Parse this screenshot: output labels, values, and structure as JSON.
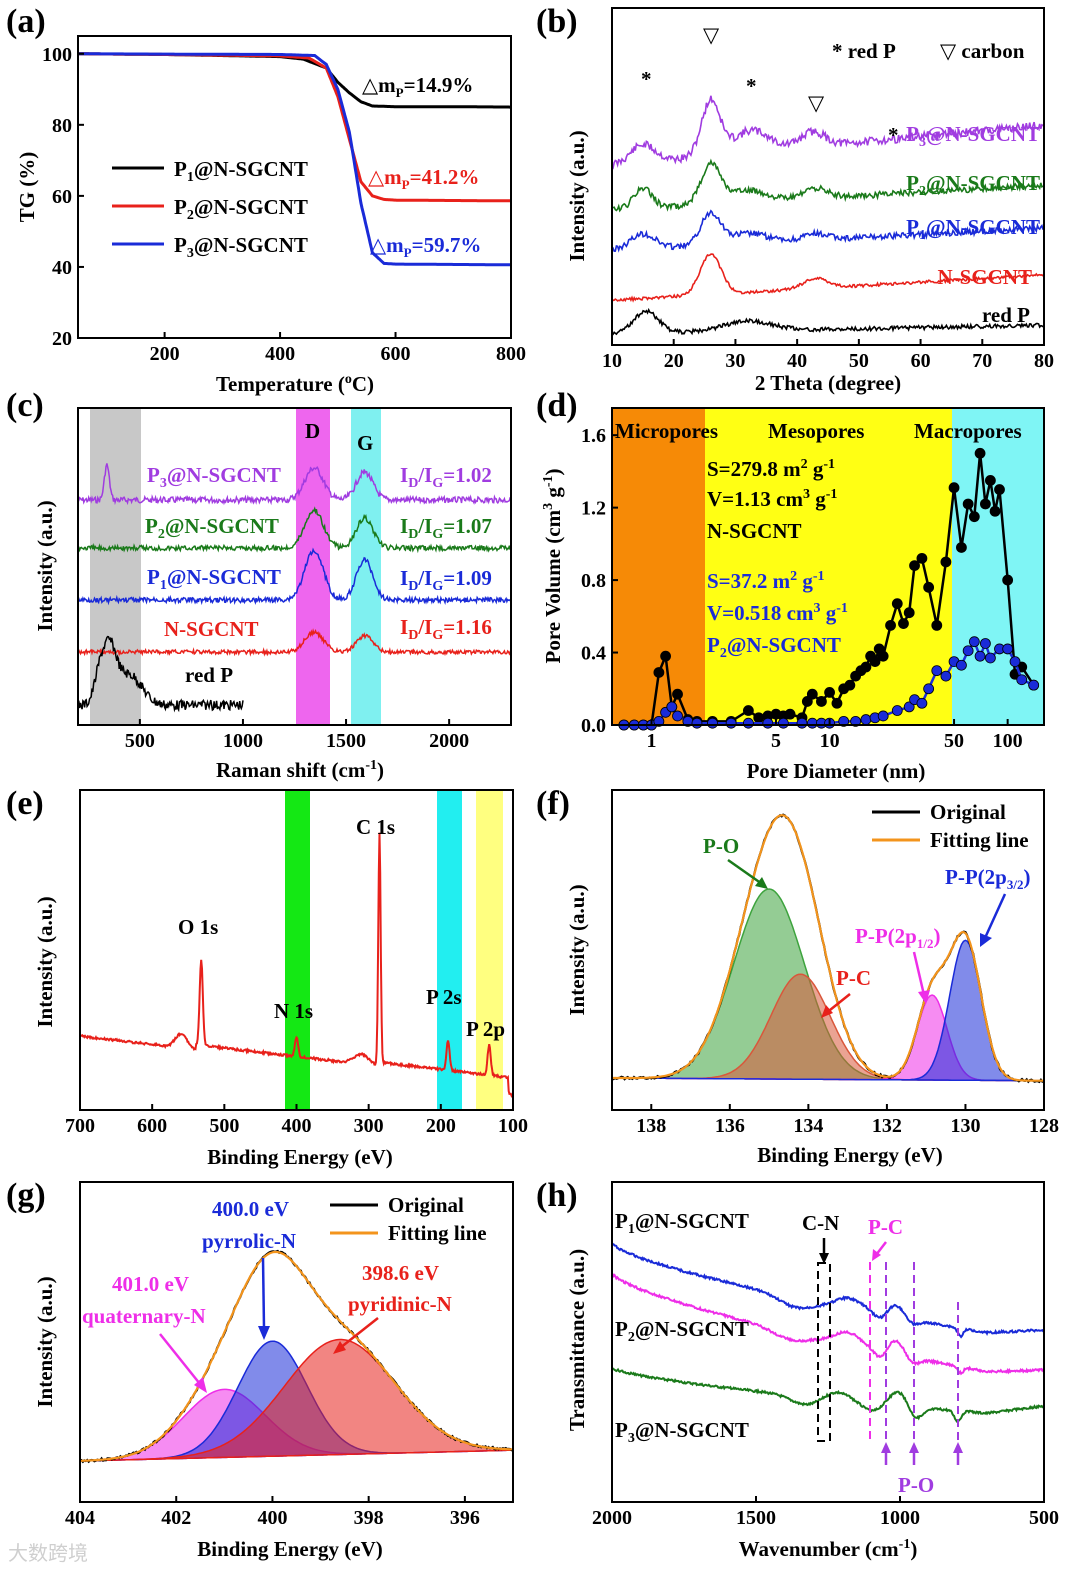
{
  "figure_colors": {
    "black": "#000000",
    "red": "#e8211b",
    "blue": "#1a2bd8",
    "purple": "#a03ce0",
    "green": "#1a7a1a",
    "magenta": "#ee2ee8",
    "orange": "#f3941c"
  },
  "watermark": "大数跨境",
  "chart_data": [
    {
      "panel": "(a)",
      "type": "line",
      "xlabel": "Temperature (°C)",
      "ylabel": "TG (%)",
      "xlim": [
        50,
        800
      ],
      "ylim": [
        20,
        105
      ],
      "xticks": [
        200,
        400,
        600,
        800
      ],
      "yticks": [
        20,
        40,
        60,
        80,
        100
      ],
      "series": [
        {
          "name": "P₁@N-SGCNT",
          "color": "#000000",
          "x": [
            50,
            200,
            400,
            440,
            480,
            500,
            520,
            540,
            560,
            600,
            700,
            800
          ],
          "y": [
            100,
            99.8,
            99.2,
            98.5,
            96,
            92,
            89,
            86.5,
            85.3,
            85.1,
            85.1,
            85.0
          ]
        },
        {
          "name": "P₂@N-SGCNT",
          "color": "#e8211b",
          "x": [
            50,
            200,
            400,
            450,
            480,
            500,
            520,
            540,
            560,
            580,
            600,
            700,
            800
          ],
          "y": [
            100,
            99.8,
            99.4,
            98.8,
            96,
            88,
            76,
            64,
            60,
            59,
            58.8,
            58.7,
            58.6
          ]
        },
        {
          "name": "P₃@N-SGCNT",
          "color": "#1a2bd8",
          "x": [
            50,
            200,
            400,
            460,
            480,
            500,
            520,
            540,
            560,
            580,
            600,
            700,
            800
          ],
          "y": [
            100,
            99.9,
            99.8,
            99.5,
            97,
            90,
            78,
            58,
            44,
            41,
            40.8,
            40.7,
            40.6
          ]
        }
      ],
      "annotations": [
        "△mₚ=14.9%",
        "△mₚ=41.2%",
        "△mₚ=59.7%"
      ]
    },
    {
      "panel": "(b)",
      "type": "line",
      "xlabel": "2 Theta (degree)",
      "ylabel": "Intensity (a.u.)",
      "xlim": [
        10,
        80
      ],
      "xticks": [
        10,
        20,
        30,
        40,
        50,
        60,
        70,
        80
      ],
      "legend": [
        "* red P",
        "▽ carbon"
      ],
      "series": [
        {
          "name": "P₃@N-SGCNT",
          "color": "#a03ce0"
        },
        {
          "name": "P₂@N-SGCNT",
          "color": "#1a7a1a"
        },
        {
          "name": "P₁@N-SGCNT",
          "color": "#1a2bd8"
        },
        {
          "name": "N-SGCNT",
          "color": "#e8211b"
        },
        {
          "name": "red P",
          "color": "#000000"
        }
      ],
      "peak_marks": [
        "*",
        "▽",
        "*",
        "▽",
        "*"
      ]
    },
    {
      "panel": "(c)",
      "type": "line",
      "xlabel": "Raman shift (cm⁻¹)",
      "ylabel": "Intensity (a.u.)",
      "xlim": [
        200,
        2300
      ],
      "xticks": [
        500,
        1000,
        1500,
        2000
      ],
      "bands": [
        "D",
        "G"
      ],
      "series": [
        {
          "name": "P₃@N-SGCNT",
          "color": "#a03ce0",
          "ratio": "Iᴅ/Iᴳ=1.02"
        },
        {
          "name": "P₂@N-SGCNT",
          "color": "#1a7a1a",
          "ratio": "Iᴅ/Iᴳ=1.07"
        },
        {
          "name": "P₁@N-SGCNT",
          "color": "#1a2bd8",
          "ratio": "Iᴅ/Iᴳ=1.09"
        },
        {
          "name": "N-SGCNT",
          "color": "#e8211b",
          "ratio": "Iᴅ/Iᴳ=1.16"
        },
        {
          "name": "red P",
          "color": "#000000",
          "ratio": ""
        }
      ]
    },
    {
      "panel": "(d)",
      "type": "scatter",
      "xlabel": "Pore Diameter (nm)",
      "ylabel": "Pore Volume (cm³ g⁻¹)",
      "xscale": "log",
      "xlim": [
        0.6,
        160
      ],
      "ylim": [
        0,
        1.75
      ],
      "xticks": [
        1,
        5,
        10,
        50,
        100
      ],
      "yticks": [
        0.0,
        0.4,
        0.8,
        1.2,
        1.6
      ],
      "regions": [
        "Micropores",
        "Mesopores",
        "Macropores"
      ],
      "texts": [
        "S=279.8 m² g⁻¹",
        "V=1.13 cm³ g⁻¹",
        "N-SGCNT",
        "S=37.2 m² g⁻¹",
        "V=0.518 cm³ g⁻¹",
        "P₂@N-SGCNT"
      ],
      "series": [
        {
          "name": "N-SGCNT",
          "color": "#000000",
          "x": [
            0.7,
            0.8,
            0.9,
            1.0,
            1.1,
            1.2,
            1.3,
            1.4,
            1.6,
            1.8,
            2.2,
            2.8,
            3.5,
            4.0,
            4.5,
            5.0,
            5.5,
            6.0,
            7.0,
            7.5,
            8,
            9,
            10,
            11,
            12,
            13,
            14,
            15,
            16,
            17,
            18,
            19,
            20,
            22,
            24,
            26,
            28,
            30,
            33,
            36,
            40,
            45,
            50,
            55,
            60,
            65,
            70,
            75,
            80,
            85,
            90,
            100,
            110,
            120,
            140
          ],
          "y": [
            0,
            0,
            0,
            0,
            0.29,
            0.38,
            0.1,
            0.17,
            0.03,
            0.02,
            0.02,
            0.02,
            0.08,
            0.04,
            0.05,
            0.06,
            0.05,
            0.06,
            0.04,
            0.13,
            0.17,
            0.13,
            0.18,
            0.12,
            0.2,
            0.22,
            0.27,
            0.3,
            0.32,
            0.38,
            0.35,
            0.42,
            0.38,
            0.55,
            0.67,
            0.56,
            0.62,
            0.88,
            0.92,
            0.76,
            0.55,
            0.9,
            1.31,
            0.98,
            1.22,
            1.15,
            1.5,
            1.22,
            1.35,
            1.18,
            1.3,
            0.8,
            0.28,
            0.32,
            0.22
          ]
        },
        {
          "name": "P₂@N-SGCNT",
          "color": "#1a2bd8",
          "x": [
            0.7,
            0.8,
            0.9,
            1.0,
            1.1,
            1.2,
            1.3,
            1.4,
            1.6,
            1.8,
            2.2,
            2.8,
            3.5,
            4.5,
            5.5,
            7,
            8,
            9,
            10,
            12,
            14,
            16,
            18,
            20,
            24,
            28,
            30,
            33,
            36,
            40,
            45,
            50,
            55,
            60,
            65,
            70,
            75,
            80,
            90,
            100,
            110,
            120,
            140
          ],
          "y": [
            0,
            0,
            0,
            0,
            0.02,
            0.07,
            0.1,
            0.05,
            0.02,
            0.01,
            0.01,
            0.01,
            0.01,
            0.01,
            0.01,
            0.01,
            0.01,
            0.01,
            0.01,
            0.02,
            0.02,
            0.03,
            0.04,
            0.05,
            0.08,
            0.1,
            0.14,
            0.12,
            0.2,
            0.3,
            0.27,
            0.35,
            0.33,
            0.41,
            0.46,
            0.38,
            0.45,
            0.37,
            0.42,
            0.42,
            0.35,
            0.25,
            0.22
          ]
        }
      ]
    },
    {
      "panel": "(e)",
      "type": "line",
      "xlabel": "Binding Energy (eV)",
      "ylabel": "Intensity (a.u.)",
      "xlim": [
        700,
        100
      ],
      "xticks": [
        700,
        600,
        500,
        400,
        300,
        200,
        100
      ],
      "peaks": [
        "O 1s",
        "N 1s",
        "C 1s",
        "P 2s",
        "P 2p"
      ],
      "series": [
        {
          "name": "survey",
          "color": "#e8211b"
        }
      ]
    },
    {
      "panel": "(f)",
      "type": "area",
      "xlabel": "Binding Energy (eV)",
      "ylabel": "Intensity (a.u.)",
      "xlim": [
        139,
        128
      ],
      "xticks": [
        138,
        136,
        134,
        132,
        130,
        128
      ],
      "legend": [
        "Original",
        "Fitting line"
      ],
      "components": [
        {
          "name": "P-O",
          "center": 135.0,
          "color": "#3da33d"
        },
        {
          "name": "P-C",
          "center": 134.2,
          "color": "#d9573b"
        },
        {
          "name": "P-P(2p₁/₂)",
          "center": 130.9,
          "color": "#ee2ee8"
        },
        {
          "name": "P-P(2p₃/₂)",
          "center": 130.0,
          "color": "#1a2bd8"
        }
      ]
    },
    {
      "panel": "(g)",
      "type": "area",
      "xlabel": "Binding Energy (eV)",
      "ylabel": "Intensity (a.u.)",
      "xlim": [
        404,
        395
      ],
      "xticks": [
        404,
        402,
        400,
        398,
        396
      ],
      "legend": [
        "Original",
        "Fitting line"
      ],
      "components": [
        {
          "name": "401.0 eV quaternary-N",
          "center": 401.0,
          "color": "#ee2ee8"
        },
        {
          "name": "400.0 eV pyrrolic-N",
          "center": 400.0,
          "color": "#1a2bd8"
        },
        {
          "name": "398.6 eV pyridinic-N",
          "center": 398.6,
          "color": "#e8211b"
        }
      ],
      "labels": {
        "q_val": "401.0 eV",
        "q_name": "quaternary-N",
        "p_val": "400.0 eV",
        "p_name": "pyrrolic-N",
        "d_val": "398.6 eV",
        "d_name": "pyridinic-N"
      }
    },
    {
      "panel": "(h)",
      "type": "line",
      "xlabel": "Wavenumber (cm⁻¹)",
      "ylabel": "Transmittance (a.u.)",
      "xlim": [
        2000,
        500
      ],
      "xticks": [
        2000,
        1500,
        1000,
        500
      ],
      "bands": [
        "C-N",
        "P-C",
        "P-O"
      ],
      "series": [
        {
          "name": "P₁@N-SGCNT",
          "color": "#1a2bd8"
        },
        {
          "name": "P₂@N-SGCNT",
          "color": "#ee2ee8"
        },
        {
          "name": "P₃@N-SGCNT",
          "color": "#1a7a1a"
        }
      ]
    }
  ]
}
